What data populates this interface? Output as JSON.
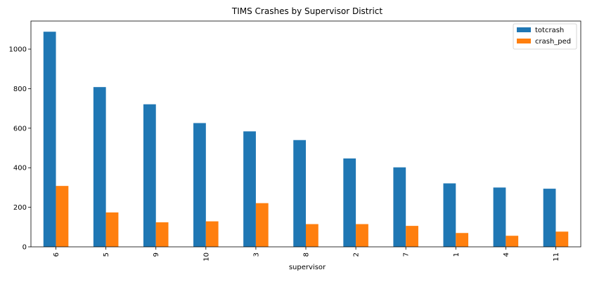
{
  "chart_data": {
    "type": "bar",
    "title": "TIMS Crashes by Supervisor District",
    "xlabel": "supervisor",
    "ylabel": "",
    "categories": [
      "6",
      "5",
      "9",
      "10",
      "3",
      "8",
      "2",
      "7",
      "1",
      "4",
      "11"
    ],
    "series": [
      {
        "name": "totcrash",
        "color": "#1f77b4",
        "values": [
          1088,
          808,
          721,
          626,
          584,
          540,
          447,
          402,
          321,
          300,
          294
        ]
      },
      {
        "name": "crash_ped",
        "color": "#ff7f0e",
        "values": [
          308,
          174,
          124,
          129,
          221,
          115,
          115,
          106,
          70,
          56,
          77
        ]
      }
    ],
    "ylim": [
      0,
      1142
    ],
    "yticks": [
      0,
      200,
      400,
      600,
      800,
      1000
    ],
    "xtick_rotation": 90,
    "grid": false,
    "legend": "top-right"
  }
}
